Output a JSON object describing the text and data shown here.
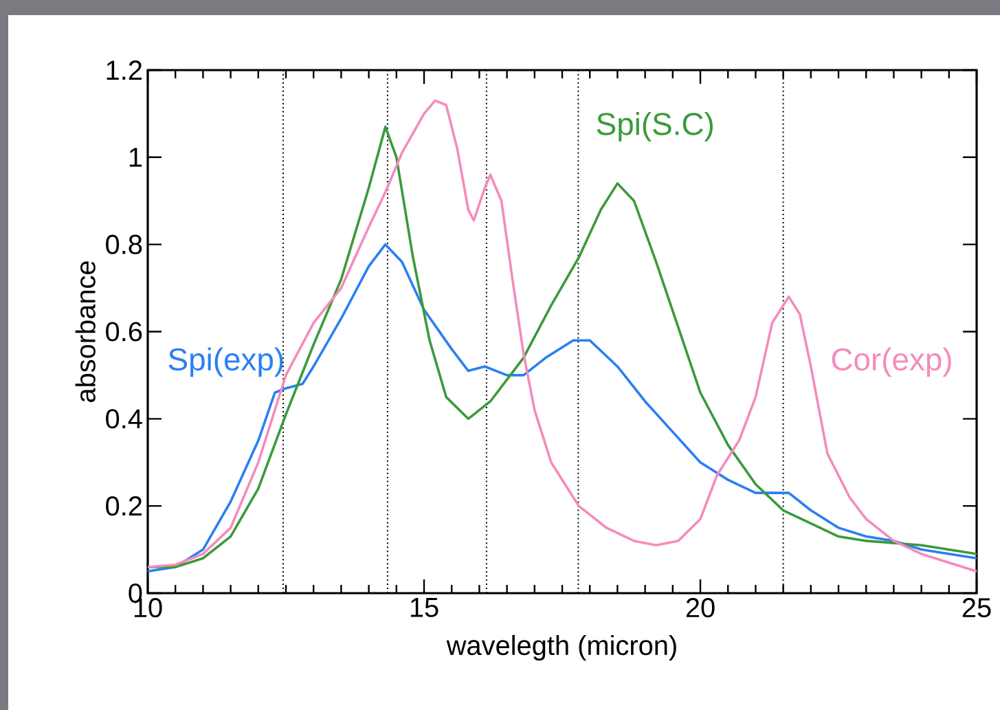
{
  "chart_data": {
    "type": "line",
    "xlabel": "wavelegth (micron)",
    "ylabel": "absorbance",
    "xlim": [
      10,
      25
    ],
    "ylim": [
      0,
      1.2
    ],
    "xticks": [
      10,
      15,
      20,
      25,
      {
        "value": 10.5,
        "label": null
      },
      {
        "value": 11,
        "label": null
      },
      {
        "value": 11.5,
        "label": null
      },
      {
        "value": 12,
        "label": null
      },
      {
        "value": 12.5,
        "label": null
      },
      {
        "value": 13,
        "label": null
      },
      {
        "value": 13.5,
        "label": null
      },
      {
        "value": 14,
        "label": null
      },
      {
        "value": 14.5,
        "label": null
      },
      {
        "value": 15.5,
        "label": null
      },
      {
        "value": 16,
        "label": null
      },
      {
        "value": 16.5,
        "label": null
      },
      {
        "value": 17,
        "label": null
      },
      {
        "value": 17.5,
        "label": null
      },
      {
        "value": 18,
        "label": null
      },
      {
        "value": 18.5,
        "label": null
      },
      {
        "value": 19,
        "label": null
      },
      {
        "value": 19.5,
        "label": null
      },
      {
        "value": 20.5,
        "label": null
      },
      {
        "value": 21,
        "label": null
      },
      {
        "value": 21.5,
        "label": null
      },
      {
        "value": 22,
        "label": null
      },
      {
        "value": 22.5,
        "label": null
      },
      {
        "value": 23,
        "label": null
      },
      {
        "value": 23.5,
        "label": null
      },
      {
        "value": 24,
        "label": null
      },
      {
        "value": 24.5,
        "label": null
      }
    ],
    "yticks": [
      0,
      0.2,
      0.4,
      0.6,
      0.8,
      1,
      1.2
    ],
    "grid": false,
    "legend": false,
    "marker": "none",
    "line_style": "solid",
    "ref_lines": [
      {
        "axis": "x",
        "value": 12.45,
        "color": "#000000",
        "line_style": "dotted"
      },
      {
        "axis": "x",
        "value": 14.34,
        "color": "#000000",
        "line_style": "dotted"
      },
      {
        "axis": "x",
        "value": 16.13,
        "color": "#000000",
        "line_style": "dotted"
      },
      {
        "axis": "x",
        "value": 17.79,
        "color": "#000000",
        "line_style": "dotted"
      },
      {
        "axis": "x",
        "value": 21.5,
        "color": "#000000",
        "line_style": "dotted"
      }
    ],
    "series": [
      {
        "name": "Spi(exp)",
        "color": "#2a7ff2",
        "x": [
          10,
          10.5,
          11,
          11.5,
          12,
          12.3,
          12.5,
          12.8,
          13,
          13.5,
          14,
          14.3,
          14.6,
          15,
          15.5,
          15.8,
          16.1,
          16.5,
          16.8,
          17.2,
          17.7,
          18,
          18.5,
          19,
          19.5,
          20,
          20.5,
          21,
          21.3,
          21.6,
          22,
          22.5,
          23,
          23.5,
          24,
          25
        ],
        "values": [
          0.05,
          0.06,
          0.1,
          0.21,
          0.35,
          0.46,
          0.47,
          0.48,
          0.52,
          0.63,
          0.75,
          0.8,
          0.76,
          0.65,
          0.56,
          0.51,
          0.52,
          0.5,
          0.5,
          0.54,
          0.58,
          0.58,
          0.52,
          0.44,
          0.37,
          0.3,
          0.26,
          0.23,
          0.23,
          0.23,
          0.19,
          0.15,
          0.13,
          0.12,
          0.1,
          0.08
        ]
      },
      {
        "name": "Spi(S.C)",
        "color": "#3a9a3a",
        "x": [
          10,
          10.5,
          11,
          11.5,
          12,
          12.5,
          13,
          13.5,
          14,
          14.3,
          14.5,
          14.8,
          15.1,
          15.4,
          15.8,
          16.2,
          16.8,
          17.3,
          17.8,
          18.2,
          18.5,
          18.8,
          19.2,
          19.6,
          20,
          20.5,
          21,
          21.5,
          22,
          22.5,
          23,
          24,
          25
        ],
        "values": [
          0.06,
          0.06,
          0.08,
          0.13,
          0.24,
          0.41,
          0.57,
          0.72,
          0.93,
          1.07,
          1.0,
          0.77,
          0.58,
          0.45,
          0.4,
          0.44,
          0.54,
          0.66,
          0.77,
          0.88,
          0.94,
          0.9,
          0.76,
          0.61,
          0.46,
          0.34,
          0.25,
          0.19,
          0.16,
          0.13,
          0.12,
          0.11,
          0.09
        ]
      },
      {
        "name": "Cor(exp)",
        "color": "#f48bbd",
        "x": [
          10,
          10.5,
          11,
          11.5,
          12,
          12.5,
          13,
          13.5,
          14,
          14.3,
          14.6,
          15,
          15.2,
          15.4,
          15.6,
          15.8,
          15.9,
          16.1,
          16.2,
          16.4,
          16.6,
          16.8,
          17,
          17.3,
          17.8,
          18.3,
          18.8,
          19.2,
          19.6,
          20,
          20.3,
          20.7,
          21,
          21.3,
          21.6,
          21.8,
          22,
          22.3,
          22.7,
          23,
          23.5,
          24,
          25
        ],
        "values": [
          0.06,
          0.065,
          0.09,
          0.15,
          0.3,
          0.5,
          0.62,
          0.7,
          0.84,
          0.92,
          1.01,
          1.1,
          1.13,
          1.12,
          1.02,
          0.88,
          0.855,
          0.93,
          0.96,
          0.9,
          0.72,
          0.55,
          0.42,
          0.3,
          0.2,
          0.15,
          0.12,
          0.11,
          0.12,
          0.17,
          0.27,
          0.35,
          0.45,
          0.62,
          0.68,
          0.64,
          0.52,
          0.32,
          0.22,
          0.17,
          0.12,
          0.09,
          0.05
        ]
      }
    ]
  }
}
